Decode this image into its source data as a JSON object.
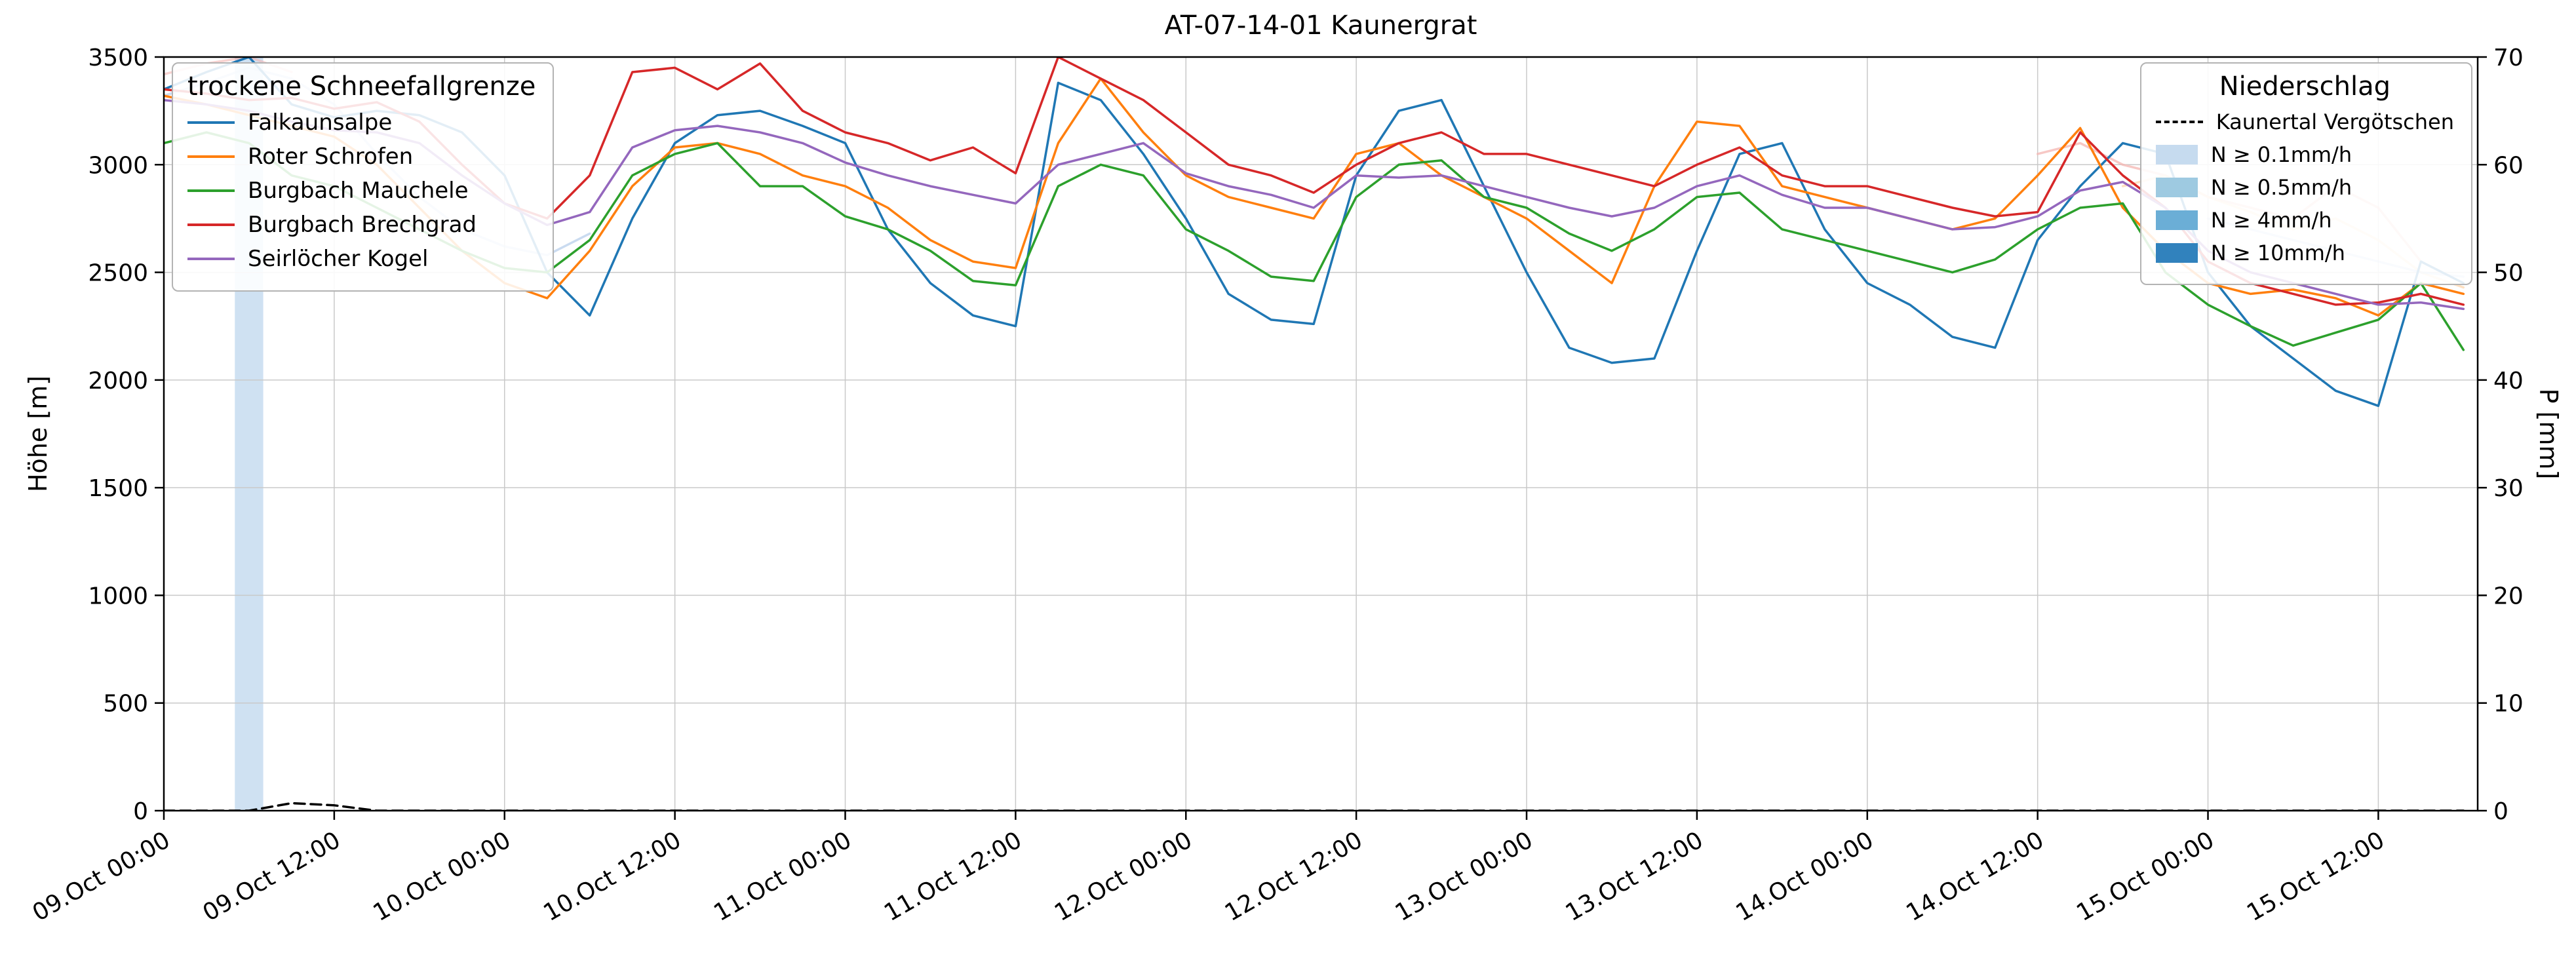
{
  "title": "AT-07-14-01 Kaunergrat",
  "axes": {
    "left_label": "Höhe [m]",
    "right_label": "P [mm]",
    "left_ticks": [
      0,
      500,
      1000,
      1500,
      2000,
      2500,
      3000,
      3500
    ],
    "right_ticks": [
      0,
      10,
      20,
      30,
      40,
      50,
      60,
      70
    ],
    "left_domain": [
      0,
      3500
    ],
    "right_domain": [
      0,
      70
    ],
    "x_domain": [
      0,
      163
    ],
    "x_tick_hours": [
      0,
      12,
      24,
      36,
      48,
      60,
      72,
      84,
      96,
      108,
      120,
      132,
      144,
      156
    ],
    "x_tick_labels": [
      "09.Oct 00:00",
      "09.Oct 12:00",
      "10.Oct 00:00",
      "10.Oct 12:00",
      "11.Oct 00:00",
      "11.Oct 12:00",
      "12.Oct 00:00",
      "12.Oct 12:00",
      "13.Oct 00:00",
      "13.Oct 12:00",
      "14.Oct 00:00",
      "14.Oct 12:00",
      "15.Oct 00:00",
      "15.Oct 12:00"
    ],
    "grid": true
  },
  "legend_lines": {
    "title": "trockene Schneefallgrenze"
  },
  "legend_precip": {
    "title": "Niederschlag",
    "line_label": "Kaunertal Vergötschen",
    "line_color": "#000000",
    "patch_entries": [
      {
        "label": "N ≥ 0.1mm/h",
        "color": "#c6dbef"
      },
      {
        "label": "N ≥ 0.5mm/h",
        "color": "#9ecae1"
      },
      {
        "label": "N ≥ 4mm/h",
        "color": "#6baed6"
      },
      {
        "label": "N ≥ 10mm/h",
        "color": "#3182bd"
      }
    ]
  },
  "chart_data": {
    "type": "line",
    "title": "AT-07-14-01 Kaunergrat",
    "ylabel": "Höhe [m]",
    "y2label": "P [mm]",
    "ylim": [
      0,
      3500
    ],
    "y2lim": [
      0,
      70
    ],
    "x_unit": "hours since 09.Oct 00:00",
    "x_hours": [
      0,
      3,
      6,
      9,
      12,
      15,
      18,
      21,
      24,
      27,
      30,
      33,
      36,
      39,
      42,
      45,
      48,
      51,
      54,
      57,
      60,
      63,
      66,
      69,
      72,
      75,
      78,
      81,
      84,
      87,
      90,
      93,
      96,
      99,
      102,
      105,
      108,
      111,
      114,
      117,
      120,
      123,
      126,
      129,
      132,
      135,
      138,
      141,
      144,
      147,
      150,
      153,
      156,
      159,
      162
    ],
    "series": [
      {
        "name": "Falkaunsalpe",
        "color": "#1f77b4",
        "values": [
          3350,
          3430,
          3500,
          3280,
          3220,
          3250,
          3230,
          3150,
          2950,
          2500,
          2300,
          2750,
          3100,
          3230,
          3250,
          3180,
          3100,
          2700,
          2450,
          2300,
          2250,
          3380,
          3300,
          3050,
          2750,
          2400,
          2280,
          2260,
          2950,
          3250,
          3300,
          2900,
          2500,
          2150,
          2080,
          2100,
          2600,
          3050,
          3100,
          2700,
          2450,
          2350,
          2200,
          2150,
          2650,
          2900,
          3100,
          3050,
          2500,
          2250,
          2100,
          1950,
          1880,
          2550,
          2450
        ]
      },
      {
        "name": "Roter Schrofen",
        "color": "#ff7f0e",
        "values": [
          3320,
          3280,
          3230,
          3180,
          3130,
          3000,
          2800,
          2600,
          2450,
          2380,
          2600,
          2900,
          3080,
          3100,
          3050,
          2950,
          2900,
          2800,
          2650,
          2550,
          2520,
          3100,
          3400,
          3150,
          2950,
          2850,
          2800,
          2750,
          3050,
          3100,
          2950,
          2850,
          2750,
          2600,
          2450,
          2900,
          3200,
          3180,
          2900,
          2850,
          2800,
          2750,
          2700,
          2750,
          2950,
          3170,
          2800,
          2600,
          2450,
          2400,
          2420,
          2380,
          2300,
          2450,
          2400
        ]
      },
      {
        "name": "Burgbach Mauchele",
        "color": "#2ca02c",
        "values": [
          3100,
          3150,
          3100,
          2950,
          2900,
          2800,
          2700,
          2600,
          2520,
          2500,
          2650,
          2950,
          3050,
          3100,
          2900,
          2900,
          2760,
          2700,
          2600,
          2460,
          2440,
          2900,
          3000,
          2950,
          2700,
          2600,
          2480,
          2460,
          2850,
          3000,
          3020,
          2850,
          2800,
          2680,
          2600,
          2700,
          2850,
          2870,
          2700,
          2650,
          2600,
          2550,
          2500,
          2560,
          2700,
          2800,
          2820,
          2500,
          2350,
          2250,
          2160,
          2220,
          2280,
          2450,
          2140
        ]
      },
      {
        "name": "Burgbach Brechgrad",
        "color": "#d62728",
        "values": [
          3350,
          3330,
          3300,
          3310,
          3260,
          3290,
          3200,
          3000,
          2820,
          2750,
          2950,
          3430,
          3450,
          3350,
          3470,
          3250,
          3150,
          3100,
          3020,
          3080,
          2960,
          3500,
          3400,
          3300,
          3150,
          3000,
          2950,
          2870,
          3000,
          3100,
          3150,
          3050,
          3050,
          3000,
          2950,
          2900,
          3000,
          3080,
          2950,
          2900,
          2900,
          2850,
          2800,
          2760,
          2780,
          3150,
          2950,
          2800,
          2550,
          2450,
          2400,
          2350,
          2360,
          2400,
          2350
        ]
      },
      {
        "name": "Seirlöcher Kogel",
        "color": "#9467bd",
        "values": [
          3300,
          3280,
          3250,
          3200,
          3160,
          3150,
          3100,
          2950,
          2820,
          2720,
          2780,
          3080,
          3160,
          3180,
          3150,
          3100,
          3010,
          2950,
          2900,
          2860,
          2820,
          3000,
          3050,
          3100,
          2960,
          2900,
          2860,
          2800,
          2950,
          2940,
          2950,
          2900,
          2850,
          2800,
          2760,
          2800,
          2900,
          2950,
          2860,
          2800,
          2800,
          2750,
          2700,
          2710,
          2760,
          2880,
          2920,
          2800,
          2600,
          2500,
          2450,
          2400,
          2350,
          2360,
          2330
        ]
      }
    ],
    "faint_series": [
      {
        "name": "Falkaunsalpe (hell, Beginn)",
        "color": "#aec7e8",
        "opacity": 0.65,
        "x": [
          0,
          3,
          6,
          9,
          12,
          15,
          18,
          21,
          24,
          27,
          30
        ],
        "values": [
          3320,
          3380,
          3450,
          3400,
          3280,
          3050,
          2850,
          2700,
          2620,
          2580,
          2680
        ]
      },
      {
        "name": "Brechgrad (hell, Beginn)",
        "color": "#f4b6b2",
        "opacity": 0.6,
        "x": [
          0,
          3,
          6,
          9
        ],
        "values": [
          3420,
          3470,
          3500,
          3430
        ]
      },
      {
        "name": "Brechgrad (hell, Ende)",
        "color": "#f4b6b2",
        "opacity": 0.75,
        "x": [
          132,
          135,
          138,
          141,
          144,
          147,
          150,
          153,
          156,
          159,
          162
        ],
        "values": [
          3050,
          3100,
          3000,
          2950,
          2850,
          2800,
          2750,
          2900,
          2800,
          2550,
          2450
        ]
      },
      {
        "name": "Roter Schrofen (hell, Ende)",
        "color": "#ffd8b1",
        "opacity": 0.8,
        "x": [
          138,
          141,
          144,
          147,
          150,
          153,
          156,
          159,
          162
        ],
        "values": [
          2900,
          2950,
          2850,
          2780,
          2700,
          2750,
          2650,
          2500,
          2430
        ]
      },
      {
        "name": "Falkaunsalpe (hell, Ende)",
        "color": "#aec7e8",
        "opacity": 0.6,
        "x": [
          144,
          147,
          150,
          153,
          156,
          159,
          162
        ],
        "values": [
          2750,
          2700,
          2650,
          2600,
          2550,
          2500,
          2480
        ]
      }
    ],
    "precip_series": {
      "name": "Kaunertal Vergötschen",
      "axis": "right",
      "style": "dashed",
      "color": "#000000",
      "values": [
        0,
        0,
        0,
        0.7,
        0.5,
        0,
        0,
        0,
        0,
        0,
        0,
        0,
        0,
        0,
        0,
        0,
        0,
        0,
        0,
        0,
        0,
        0,
        0,
        0,
        0,
        0,
        0,
        0,
        0,
        0,
        0,
        0,
        0,
        0,
        0,
        0,
        0,
        0,
        0,
        0,
        0,
        0,
        0,
        0,
        0,
        0,
        0,
        0,
        0,
        0,
        0,
        0,
        0,
        0,
        0
      ]
    },
    "precip_bands": [
      {
        "from": 5,
        "to": 7,
        "level": "N ≥ 0.1mm/h",
        "color": "#cfe1f2"
      }
    ],
    "legend_position": "upper left / upper right"
  }
}
